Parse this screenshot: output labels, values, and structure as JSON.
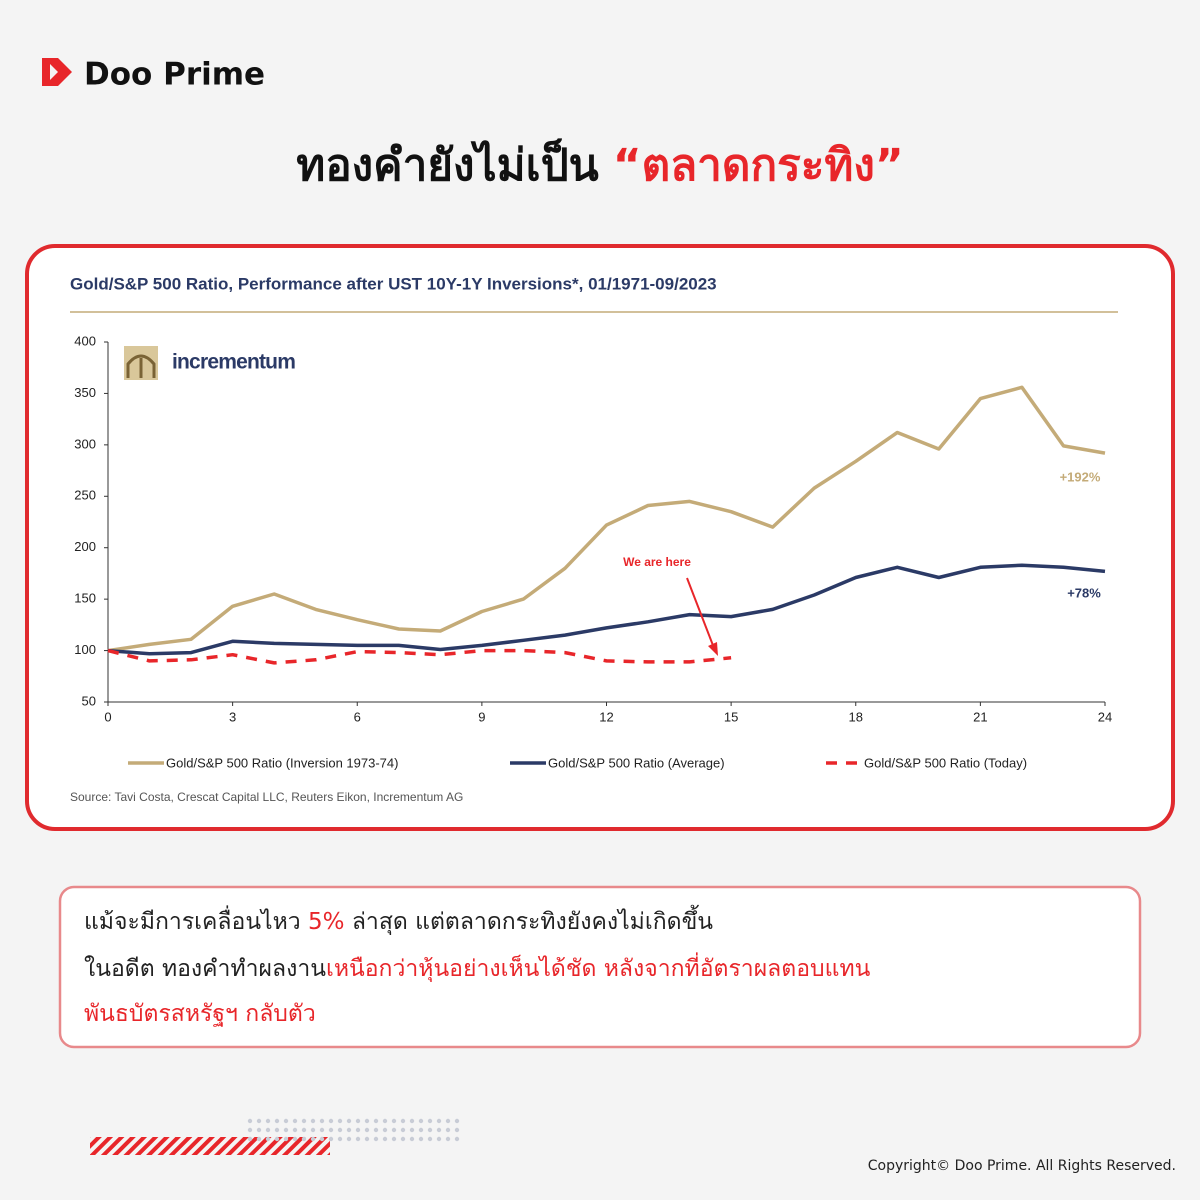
{
  "brand": {
    "name": "Doo Prime"
  },
  "headline": {
    "text": "ทองคำยังไม่เป็น",
    "highlight": "“ตลาดกระทิง”"
  },
  "chart_data": {
    "type": "line",
    "title": "Gold/S&P 500 Ratio, Performance after UST 10Y-1Y Inversions*, 01/1971-09/2023",
    "logo": "incrementum",
    "x": [
      0,
      1,
      2,
      3,
      4,
      5,
      6,
      7,
      8,
      9,
      10,
      11,
      12,
      13,
      14,
      15,
      16,
      17,
      18,
      19,
      20,
      21,
      22,
      23,
      24
    ],
    "xlim": [
      0,
      24
    ],
    "xticks": [
      0,
      3,
      6,
      9,
      12,
      15,
      18,
      21,
      24
    ],
    "ylim": [
      50,
      400
    ],
    "yticks": [
      50,
      100,
      150,
      200,
      250,
      300,
      350,
      400
    ],
    "series": [
      {
        "name": "Gold/S&P 500 Ratio (Inversion 1973-74)",
        "color": "#c4ab78",
        "style": "solid",
        "values": [
          100,
          106,
          111,
          143,
          155,
          140,
          130,
          121,
          119,
          138,
          150,
          180,
          222,
          241,
          245,
          235,
          220,
          258,
          284,
          312,
          296,
          345,
          356,
          299,
          292
        ]
      },
      {
        "name": "Gold/S&P 500 Ratio (Average)",
        "color": "#2b3a66",
        "style": "solid",
        "values": [
          100,
          97,
          98,
          109,
          107,
          106,
          105,
          105,
          101,
          105,
          110,
          115,
          122,
          128,
          135,
          133,
          140,
          154,
          171,
          181,
          171,
          181,
          183,
          181,
          177
        ]
      },
      {
        "name": "Gold/S&P 500 Ratio (Today)",
        "color": "#e8262a",
        "style": "dashed",
        "values": [
          100,
          90,
          91,
          96,
          88,
          91,
          99,
          98,
          96,
          100,
          100,
          98,
          90,
          89,
          89,
          93,
          null,
          null,
          null,
          null,
          null,
          null,
          null,
          null,
          null
        ]
      }
    ],
    "annotations": [
      {
        "text": "+192%",
        "color": "#c4ab78"
      },
      {
        "text": "+78%",
        "color": "#2b3a66"
      },
      {
        "text": "We are here",
        "color": "#e8262a"
      }
    ],
    "source": "Source: Tavi Costa, Crescat Capital LLC, Reuters Eikon, Incrementum AG"
  },
  "caption": {
    "lines": [
      [
        {
          "text": "แม้จะมีการเคลื่อนไหว ",
          "highlight": false
        },
        {
          "text": "5%",
          "highlight": true
        },
        {
          "text": " ล่าสุด แต่ตลาดกระทิงยังคงไม่เกิดขึ้น",
          "highlight": false
        }
      ],
      [
        {
          "text": "ในอดีต ทองคำทำผลงาน",
          "highlight": false
        },
        {
          "text": "เหนือกว่าหุ้นอย่างเห็นได้ชัด หลังจากที่อัตราผลตอบแทน",
          "highlight": true
        }
      ],
      [
        {
          "text": "พันธบัตรสหรัฐฯ กลับตัว",
          "highlight": true
        }
      ]
    ]
  },
  "footer": {
    "copyright": "Copyright© Doo Prime. All Rights Reserved."
  }
}
